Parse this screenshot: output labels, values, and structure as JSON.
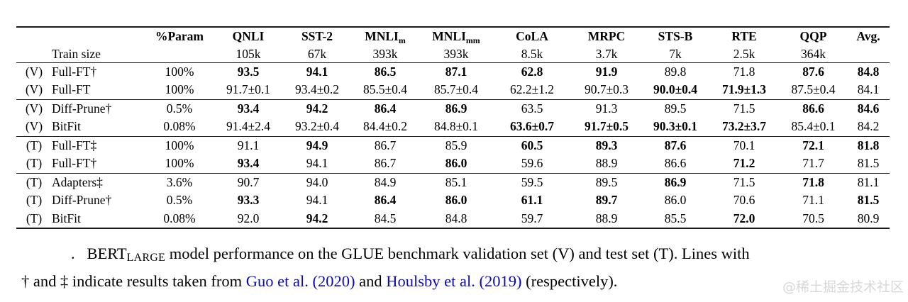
{
  "colors": {
    "link_blue": "#0a0ab4",
    "rule": "#1a1a1a",
    "watermark_gray": "#d8d8d8"
  },
  "table": {
    "train_size_label": "Train size",
    "columns": [
      {
        "t": "%Param"
      },
      {
        "t": "QNLI"
      },
      {
        "t": "SST-2"
      },
      {
        "t": "MNLI",
        "sub": "m"
      },
      {
        "t": "MNLI",
        "sub": "mm"
      },
      {
        "t": "CoLA"
      },
      {
        "t": "MRPC"
      },
      {
        "t": "STS-B"
      },
      {
        "t": "RTE"
      },
      {
        "t": "QQP"
      },
      {
        "t": "Avg."
      }
    ],
    "train_sizes": [
      "",
      "105k",
      "67k",
      "393k",
      "393k",
      "8.5k",
      "3.7k",
      "7k",
      "2.5k",
      "364k",
      ""
    ],
    "group_start_rows": [
      2,
      4,
      6
    ],
    "rows": [
      {
        "set": "(V)",
        "method": "Full-FT†",
        "cells": [
          {
            "t": "100%"
          },
          {
            "t": "93.5",
            "b": true
          },
          {
            "t": "94.1",
            "b": true
          },
          {
            "t": "86.5",
            "b": true
          },
          {
            "t": "87.1",
            "b": true
          },
          {
            "t": "62.8",
            "b": true
          },
          {
            "t": "91.9",
            "b": true
          },
          {
            "t": "89.8"
          },
          {
            "t": "71.8"
          },
          {
            "t": "87.6",
            "b": true
          },
          {
            "t": "84.8",
            "b": true
          }
        ]
      },
      {
        "set": "(V)",
        "method": "Full-FT",
        "cells": [
          {
            "t": "100%"
          },
          {
            "t": "91.7±0.1"
          },
          {
            "t": "93.4±0.2"
          },
          {
            "t": "85.5±0.4"
          },
          {
            "t": "85.7±0.4"
          },
          {
            "t": "62.2±1.2"
          },
          {
            "t": "90.7±0.3"
          },
          {
            "t": "90.0±0.4",
            "b": true
          },
          {
            "t": "71.9±1.3",
            "b": true
          },
          {
            "t": "87.5±0.4"
          },
          {
            "t": "84.1"
          }
        ]
      },
      {
        "set": "(V)",
        "method": "Diff-Prune†",
        "cells": [
          {
            "t": "0.5%"
          },
          {
            "t": "93.4",
            "b": true
          },
          {
            "t": "94.2",
            "b": true
          },
          {
            "t": "86.4",
            "b": true
          },
          {
            "t": "86.9",
            "b": true
          },
          {
            "t": "63.5"
          },
          {
            "t": "91.3"
          },
          {
            "t": "89.5"
          },
          {
            "t": "71.5"
          },
          {
            "t": "86.6",
            "b": true
          },
          {
            "t": "84.6",
            "b": true
          }
        ]
      },
      {
        "set": "(V)",
        "method": "BitFit",
        "cells": [
          {
            "t": "0.08%"
          },
          {
            "t": "91.4±2.4"
          },
          {
            "t": "93.2±0.4"
          },
          {
            "t": "84.4±0.2"
          },
          {
            "t": "84.8±0.1"
          },
          {
            "t": "63.6±0.7",
            "b": true
          },
          {
            "t": "91.7±0.5",
            "b": true
          },
          {
            "t": "90.3±0.1",
            "b": true
          },
          {
            "t": "73.2±3.7",
            "b": true
          },
          {
            "t": "85.4±0.1"
          },
          {
            "t": "84.2"
          }
        ]
      },
      {
        "set": "(T)",
        "method": "Full-FT‡",
        "cells": [
          {
            "t": "100%"
          },
          {
            "t": "91.1"
          },
          {
            "t": "94.9",
            "b": true
          },
          {
            "t": "86.7"
          },
          {
            "t": "85.9"
          },
          {
            "t": "60.5",
            "b": true
          },
          {
            "t": "89.3",
            "b": true
          },
          {
            "t": "87.6",
            "b": true
          },
          {
            "t": "70.1"
          },
          {
            "t": "72.1",
            "b": true
          },
          {
            "t": "81.8",
            "b": true
          }
        ]
      },
      {
        "set": "(T)",
        "method": "Full-FT†",
        "cells": [
          {
            "t": "100%"
          },
          {
            "t": "93.4",
            "b": true
          },
          {
            "t": "94.1"
          },
          {
            "t": "86.7"
          },
          {
            "t": "86.0",
            "b": true
          },
          {
            "t": "59.6"
          },
          {
            "t": "88.9"
          },
          {
            "t": "86.6"
          },
          {
            "t": "71.2",
            "b": true
          },
          {
            "t": "71.7"
          },
          {
            "t": "81.5"
          }
        ]
      },
      {
        "set": "(T)",
        "method": "Adapters‡",
        "cells": [
          {
            "t": "3.6%"
          },
          {
            "t": "90.7"
          },
          {
            "t": "94.0"
          },
          {
            "t": "84.9"
          },
          {
            "t": "85.1"
          },
          {
            "t": "59.5"
          },
          {
            "t": "89.5"
          },
          {
            "t": "86.9",
            "b": true
          },
          {
            "t": "71.5"
          },
          {
            "t": "71.8",
            "b": true
          },
          {
            "t": "81.1"
          }
        ]
      },
      {
        "set": "(T)",
        "method": "Diff-Prune†",
        "cells": [
          {
            "t": "0.5%"
          },
          {
            "t": "93.3",
            "b": true
          },
          {
            "t": "94.1"
          },
          {
            "t": "86.4",
            "b": true
          },
          {
            "t": "86.0",
            "b": true
          },
          {
            "t": "61.1",
            "b": true
          },
          {
            "t": "89.7",
            "b": true
          },
          {
            "t": "86.0"
          },
          {
            "t": "70.6"
          },
          {
            "t": "71.1"
          },
          {
            "t": "81.5",
            "b": true
          }
        ]
      },
      {
        "set": "(T)",
        "method": "BitFit",
        "cells": [
          {
            "t": "0.08%"
          },
          {
            "t": "92.0"
          },
          {
            "t": "94.2",
            "b": true
          },
          {
            "t": "84.5"
          },
          {
            "t": "84.8"
          },
          {
            "t": "59.7"
          },
          {
            "t": "88.9"
          },
          {
            "t": "85.5"
          },
          {
            "t": "72.0",
            "b": true
          },
          {
            "t": "70.5"
          },
          {
            "t": "80.9"
          }
        ]
      }
    ]
  },
  "caption": {
    "line1": [
      {
        "t": ".   BERT"
      },
      {
        "t": "LARGE",
        "style": "sub"
      },
      {
        "t": " model performance on the GLUE benchmark validation set (V) and test set (T). Lines with"
      }
    ],
    "line2": [
      {
        "t": "† and ‡ indicate results taken from "
      },
      {
        "t": "Guo et al.",
        "link": true
      },
      {
        "t": " "
      },
      {
        "t": "(2020)",
        "link": true
      },
      {
        "t": " and "
      },
      {
        "t": "Houlsby et al.",
        "link": true
      },
      {
        "t": " "
      },
      {
        "t": "(2019)",
        "link": true
      },
      {
        "t": " (respectively)."
      }
    ]
  },
  "watermark": "@稀土掘金技术社区"
}
